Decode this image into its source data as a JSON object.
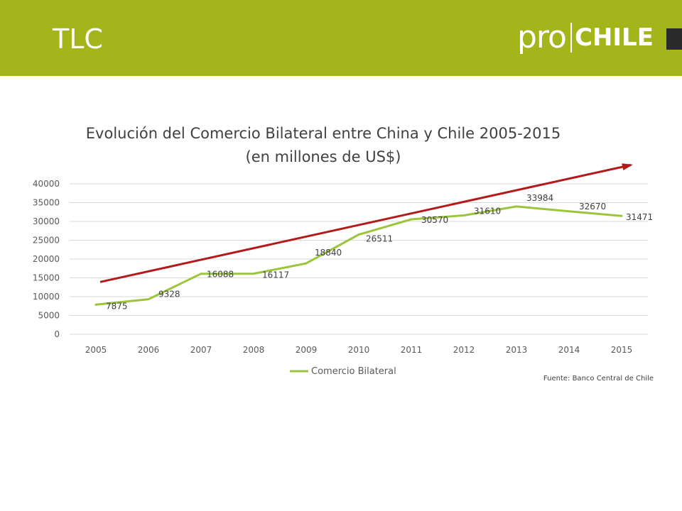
{
  "slide": {
    "title": "TLC",
    "logo_pro": "pro",
    "logo_chile": "CHILE"
  },
  "chart_data": {
    "type": "line",
    "title": "Evolución del Comercio Bilateral entre China y Chile 2005-2015",
    "subtitle": "(en millones de US$)",
    "categories": [
      "2005",
      "2006",
      "2007",
      "2008",
      "2009",
      "2010",
      "2011",
      "2012",
      "2013",
      "2014",
      "2015"
    ],
    "series": [
      {
        "name": "Comercio Bilateral",
        "values": [
          7875,
          9328,
          16088,
          16117,
          18840,
          26511,
          30570,
          31610,
          33984,
          32670,
          31471
        ],
        "color": "#9bc63c"
      }
    ],
    "trend_arrow": {
      "from": 13900,
      "to": 45000,
      "color": "#b31a1a"
    },
    "ylim": [
      0,
      40000
    ],
    "yticks": [
      0,
      5000,
      10000,
      15000,
      20000,
      25000,
      30000,
      35000,
      40000
    ],
    "grid": true,
    "legend": "bottom",
    "xlabel": "",
    "ylabel": ""
  },
  "source_note": "Fuente: Banco Central de Chile"
}
